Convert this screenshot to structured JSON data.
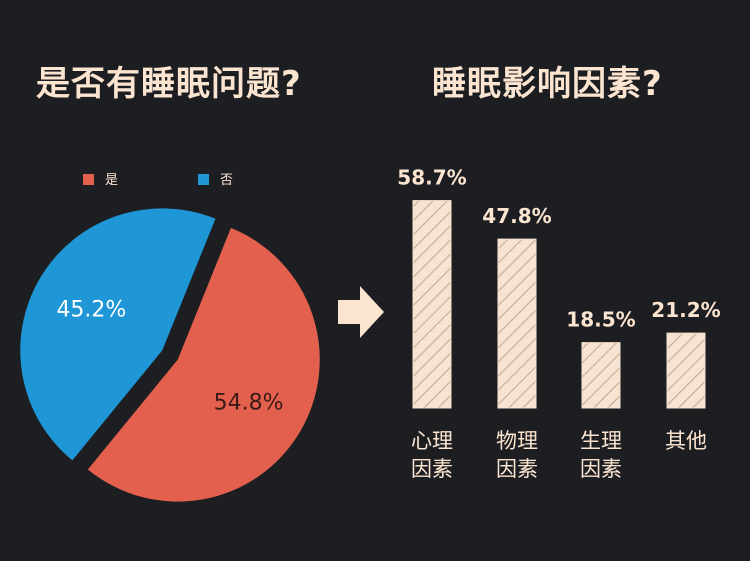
{
  "titles": {
    "left": "是否有睡眠问题?",
    "right": "睡眠影响因素?"
  },
  "colors": {
    "background": "#1d1e22",
    "yes": "#e4604e",
    "no": "#1f96d6",
    "bar_fill": "#f7e3d2",
    "bar_hatch": "#c9a993",
    "text": "#fbe4d0"
  },
  "chart_data": [
    {
      "type": "pie",
      "title": "是否有睡眠问题?",
      "legend": "top",
      "slices": [
        {
          "label": "是",
          "value": 54.8,
          "value_label": "54.8%",
          "color": "#e4604e"
        },
        {
          "label": "否",
          "value": 45.2,
          "value_label": "45.2%",
          "color": "#1f96d6"
        }
      ]
    },
    {
      "type": "bar",
      "title": "睡眠影响因素?",
      "categories": [
        "心理\n因素",
        "物理\n因素",
        "生理\n因素",
        "其他"
      ],
      "values": [
        58.7,
        47.8,
        18.5,
        21.2
      ],
      "value_labels": [
        "58.7%",
        "47.8%",
        "18.5%",
        "21.2%"
      ],
      "ylim": [
        0,
        60
      ],
      "grid": false
    }
  ]
}
